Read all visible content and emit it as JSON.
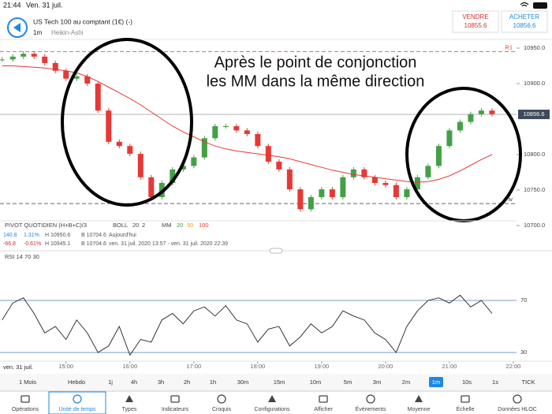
{
  "status_bar": {
    "time": "21:44",
    "date": "Ven. 31 juil."
  },
  "header": {
    "instrument": "US Tech 100 au comptant (1€) (-)",
    "timeframe": "1m",
    "chart_style": "Heikin-Ashi"
  },
  "quotes": {
    "sell": {
      "label": "VENDRE",
      "price": "10855.6"
    },
    "buy": {
      "label": "ACHETER",
      "price": "10856.6"
    }
  },
  "annotation": [
    "Après le point de conjonction",
    "les MM dans la même direction"
  ],
  "indicators_legend": {
    "pivot": "PIVOT QUOTIDIEN (H+B+C)/3",
    "boll": "BOLL",
    "boll_params": [
      "20",
      "2"
    ],
    "mm": "MM",
    "mm_params": [
      "20",
      "50"
    ]
  },
  "stats": [
    [
      "140.8",
      "1.31%",
      "H 10950.6",
      "B 10704.6",
      "Aujourd'hui"
    ],
    [
      "-66.8",
      "-0.61%",
      "H 10945.1",
      "B 10704.6",
      "ven. 31 juil. 2020 13:57 - ven. 31 juil. 2020 22:39"
    ]
  ],
  "chart_data": [
    {
      "type": "candlestick",
      "up_color": "#43a047",
      "down_color": "#e53935",
      "x": [
        840,
        850,
        860,
        870,
        880,
        890,
        900,
        910,
        920,
        930,
        940,
        950,
        960,
        970,
        980,
        990,
        1000,
        1010,
        1020,
        1030,
        1040,
        1050,
        1060,
        1070,
        1080,
        1090,
        1100,
        1110,
        1120,
        1130,
        1140,
        1150,
        1160,
        1170,
        1180,
        1190,
        1200,
        1210,
        1220,
        1230,
        1240,
        1250,
        1260,
        1270,
        1280,
        1290,
        1300
      ],
      "values": [
        10934,
        10938,
        10942,
        10938,
        10929,
        10918,
        10907,
        10910,
        10900,
        10862,
        10818,
        10812,
        10801,
        10768,
        10740,
        10760,
        10779,
        10784,
        10796,
        10823,
        10840,
        10840,
        10834,
        10829,
        10812,
        10790,
        10779,
        10751,
        10723,
        10740,
        10751,
        10740,
        10768,
        10779,
        10768,
        10760,
        10757,
        10740,
        10751,
        10768,
        10784,
        10812,
        10834,
        10846,
        10857,
        10862,
        10857
      ],
      "moving_average": {
        "name": "100",
        "color": "#e53935",
        "values": [
          10925,
          10925,
          10924,
          10923,
          10922,
          10920,
          10918,
          10915,
          10910,
          10903,
          10895,
          10887,
          10879,
          10870,
          10860,
          10850,
          10840,
          10832,
          10825,
          10818,
          10812,
          10808,
          10805,
          10803,
          10801,
          10799,
          10797,
          10794,
          10790,
          10786,
          10782,
          10778,
          10775,
          10772,
          10770,
          10768,
          10766,
          10764,
          10762,
          10761,
          10762,
          10765,
          10770,
          10777,
          10785,
          10793,
          10800
        ]
      },
      "current_price": 10856.6,
      "reference_lines": [
        {
          "label": "R1",
          "value": 10945
        },
        {
          "label": "Piv",
          "value": 10731
        }
      ],
      "xlim": [
        838,
        1323
      ],
      "ylim": [
        10700,
        10950
      ],
      "yticks": [
        {
          "value": 10700,
          "label": "10700.0"
        },
        {
          "value": 10750,
          "label": "10750.0"
        },
        {
          "value": 10800,
          "label": "10800.0"
        },
        {
          "value": 10900,
          "label": "10900.0"
        },
        {
          "value": 10950,
          "label": "10950.0"
        }
      ]
    },
    {
      "type": "line",
      "title": "RSI 14 70 30",
      "color": "#222222",
      "level_color": "#4a7fb5",
      "x": [
        840,
        850,
        860,
        870,
        880,
        890,
        900,
        910,
        920,
        930,
        940,
        950,
        960,
        970,
        980,
        990,
        1000,
        1010,
        1020,
        1030,
        1040,
        1050,
        1060,
        1070,
        1080,
        1090,
        1100,
        1110,
        1120,
        1130,
        1140,
        1150,
        1160,
        1170,
        1180,
        1190,
        1200,
        1210,
        1220,
        1230,
        1240,
        1250,
        1260,
        1270,
        1280,
        1290,
        1300
      ],
      "values": [
        55,
        68,
        72,
        60,
        45,
        50,
        40,
        55,
        45,
        30,
        35,
        50,
        28,
        40,
        38,
        55,
        60,
        52,
        62,
        65,
        58,
        66,
        55,
        52,
        38,
        48,
        50,
        35,
        42,
        52,
        45,
        50,
        62,
        58,
        55,
        45,
        40,
        30,
        50,
        62,
        70,
        72,
        68,
        74,
        65,
        70,
        60
      ],
      "xlabel": "ven. 31 juil.",
      "xlim": [
        838,
        1323
      ],
      "ylim": [
        20,
        100
      ],
      "yticks": [
        30,
        70
      ],
      "xticks": [
        {
          "value": 900,
          "label": "15:00"
        },
        {
          "value": 960,
          "label": "16:00"
        },
        {
          "value": 1020,
          "label": "17:00"
        },
        {
          "value": 1080,
          "label": "18:00"
        },
        {
          "value": 1140,
          "label": "19:00"
        },
        {
          "value": 1200,
          "label": "20:00"
        },
        {
          "value": 1260,
          "label": "21:00"
        },
        {
          "value": 1320,
          "label": "22:00"
        }
      ]
    }
  ],
  "timeframes": {
    "items": [
      "1 Mois",
      "Hebdo",
      "1j",
      "4h",
      "3h",
      "2h",
      "1h",
      "30m",
      "15m",
      "10m",
      "5m",
      "3m",
      "2m",
      "1m",
      "10s",
      "1s",
      "TICK"
    ],
    "selected": 13
  },
  "toolbar": {
    "items": [
      "Opérations",
      "Unité de temps",
      "Types",
      "Indicateurs",
      "Croquis",
      "Configurations",
      "Afficher",
      "Événements",
      "Moyenne",
      "Échelle",
      "Données HLOC"
    ],
    "selected": 1
  }
}
